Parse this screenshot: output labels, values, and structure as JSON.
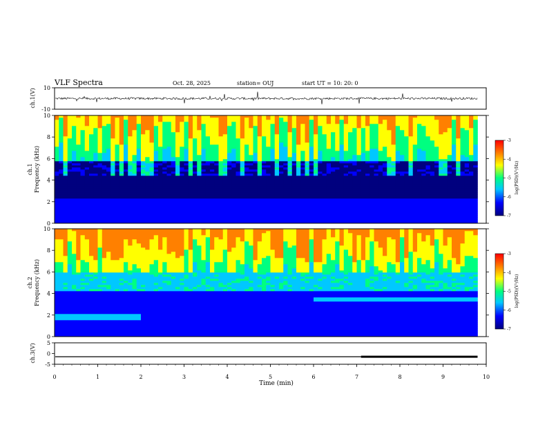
{
  "header": {
    "title": "VLF Spectra",
    "date": "Oct. 28, 2025",
    "station": "station= OUJ",
    "start": "start  UT =   10: 20: 0"
  },
  "colors": {
    "trace": "#000000",
    "colormap": [
      "#00007f",
      "#0000ff",
      "#00c8ff",
      "#00ff80",
      "#ffff00",
      "#ff8000",
      "#ff0000"
    ]
  },
  "chart_data": [
    {
      "id": "ch1",
      "type": "line",
      "ylabel": "ch.1(V)",
      "ylim": [
        -10,
        10
      ],
      "yticks": [
        10,
        -10
      ],
      "baseline": 0,
      "xlim": [
        0,
        10
      ],
      "note": "dense noisy trace near 0 V until ~9.8 min"
    },
    {
      "id": "ch1_spec",
      "type": "heatmap",
      "ylabel_top": "ch.1",
      "ylabel": "Frequency (kHz)",
      "ylim": [
        0,
        10
      ],
      "yticks": [
        0,
        2,
        4,
        6,
        8,
        10
      ],
      "xlim": [
        0,
        10
      ],
      "data_end_min": 9.8,
      "colorbar": {
        "label": "log(PSD)(V²/Hz)",
        "ticks": [
          -3,
          -4,
          -5,
          -6,
          -7
        ],
        "range": [
          -7,
          -3
        ]
      }
    },
    {
      "id": "ch2_spec",
      "type": "heatmap",
      "ylabel_top": "ch.2",
      "ylabel": "Frequency (kHz)",
      "ylim": [
        0,
        10
      ],
      "yticks": [
        0,
        2,
        4,
        6,
        8,
        10
      ],
      "xlim": [
        0,
        10
      ],
      "data_end_min": 9.8,
      "colorbar": {
        "label": "log(PSD)(V²/Hz)",
        "ticks": [
          -3,
          -4,
          -5,
          -6,
          -7
        ],
        "range": [
          -7,
          -3
        ]
      }
    },
    {
      "id": "ch3",
      "type": "line",
      "ylabel": "ch.3(V)",
      "ylim": [
        -5,
        5
      ],
      "yticks": [
        5,
        0,
        -5
      ],
      "baseline": -1.5,
      "xlim": [
        0,
        10
      ],
      "xlabel": "Time (min)",
      "xticks": [
        0,
        1,
        2,
        3,
        4,
        5,
        6,
        7,
        8,
        9,
        10
      ],
      "note": "flat line at about -1.5 V, thicker from ~7.1 min to 9.8 min"
    }
  ]
}
